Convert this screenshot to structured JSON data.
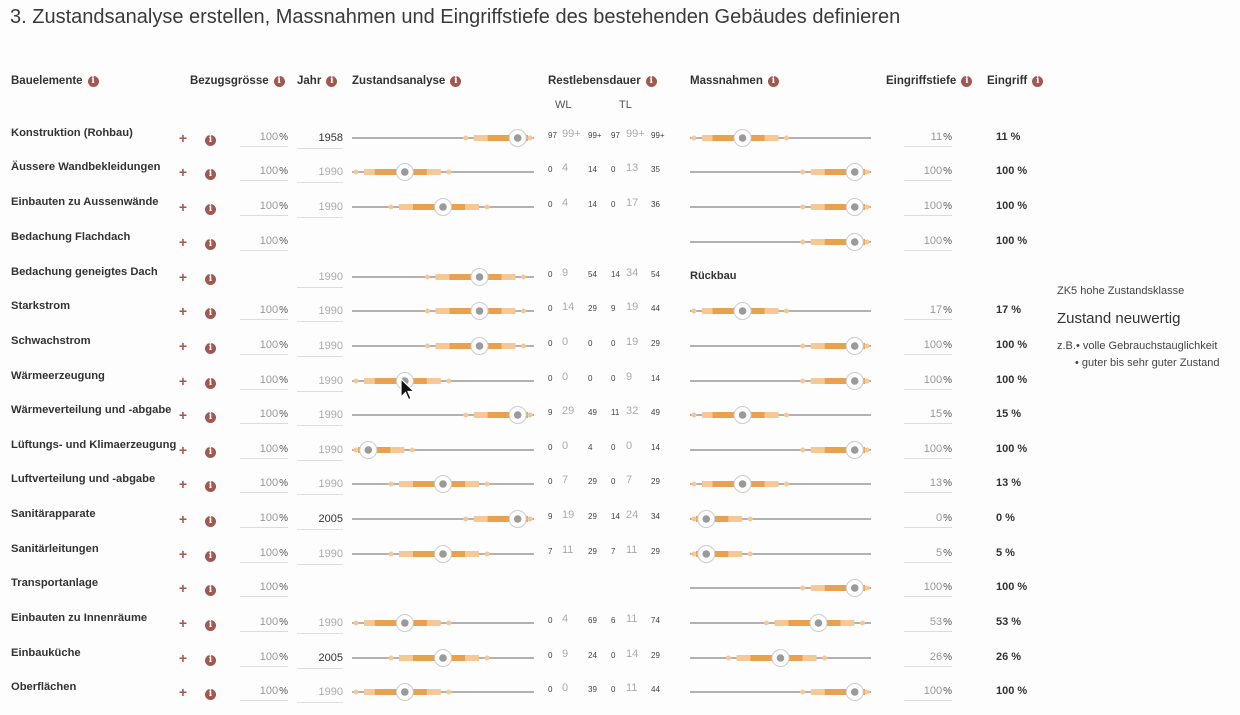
{
  "title": "3. Zustandsanalyse erstellen, Massnahmen und Eingriffstiefe des bestehenden Gebäudes definieren",
  "headers": {
    "bauelemente": "Bauelemente",
    "bezugsgroesse": "Bezugsgrösse",
    "jahr": "Jahr",
    "zustandsanalyse": "Zustandsanalyse",
    "restlebensdauer": "Restlebensdauer",
    "wl": "WL",
    "tl": "TL",
    "massnahmen": "Massnahmen",
    "eingriffstiefe": "Eingriffstiefe",
    "eingriff": "Eingriff"
  },
  "icons": {
    "info": "info-icon",
    "plus": "plus-icon",
    "cursor": "mouse-cursor-icon"
  },
  "colors": {
    "accent": "#a0584f",
    "light": "#f5c896",
    "mid": "#e8a14e",
    "dark": "#c0645a",
    "track": "#999999",
    "knob": "#9a9a9a"
  },
  "percent_sign": "%",
  "side_panel": {
    "class": "ZK5 hohe Zustandsklasse",
    "state": "Zustand neuwertig",
    "example_prefix": "z.B.",
    "bullet1": "• volle Gebrauchstauglichkeit",
    "bullet2": "• guter bis sehr guter Zustand"
  },
  "rows": [
    {
      "name": "Konstruktion (Rohbau)",
      "bezug": "100",
      "year": "1958",
      "year_set": true,
      "z": 0.95,
      "wl": [
        "97",
        "99+",
        "99+"
      ],
      "tl": [
        "97",
        "99+",
        "99+"
      ],
      "m": 0.27,
      "tiefe": "11",
      "ein": "11 %"
    },
    {
      "name": "Äussere Wandbekleidungen",
      "bezug": "100",
      "year": "1990",
      "year_set": false,
      "z": 0.27,
      "wl": [
        "0",
        "4",
        "14"
      ],
      "tl": [
        "0",
        "13",
        "35"
      ],
      "m": 0.95,
      "tiefe": "100",
      "ein": "100 %"
    },
    {
      "name": "Einbauten zu Aussenwände",
      "bezug": "100",
      "year": "1990",
      "year_set": false,
      "z": 0.5,
      "wl": [
        "0",
        "4",
        "14"
      ],
      "tl": [
        "0",
        "17",
        "36"
      ],
      "m": 0.95,
      "tiefe": "100",
      "ein": "100 %"
    },
    {
      "name": "Bedachung Flachdach",
      "bezug": "100",
      "year": null,
      "year_set": false,
      "z": null,
      "wl": null,
      "tl": null,
      "m": 0.95,
      "tiefe": "100",
      "ein": "100 %"
    },
    {
      "name": "Bedachung geneigtes Dach",
      "bezug": null,
      "year": "1990",
      "year_set": false,
      "z": 0.72,
      "wl": [
        "0",
        "9",
        "54"
      ],
      "tl": [
        "14",
        "34",
        "54"
      ],
      "m": null,
      "rueck": "Rückbau",
      "tiefe": null,
      "ein": null
    },
    {
      "name": "Starkstrom",
      "bezug": "100",
      "year": "1990",
      "year_set": false,
      "z": 0.72,
      "wl": [
        "0",
        "14",
        "29"
      ],
      "tl": [
        "9",
        "19",
        "44"
      ],
      "m": 0.27,
      "tiefe": "17",
      "ein": "17 %"
    },
    {
      "name": "Schwachstrom",
      "bezug": "100",
      "year": "1990",
      "year_set": false,
      "z": 0.72,
      "wl": [
        "0",
        "0",
        "0"
      ],
      "tl": [
        "0",
        "19",
        "29"
      ],
      "m": 0.95,
      "tiefe": "100",
      "ein": "100 %"
    },
    {
      "name": "Wärmeerzeugung",
      "bezug": "100",
      "year": "1990",
      "year_set": false,
      "z": 0.27,
      "wl": [
        "0",
        "0",
        "0"
      ],
      "tl": [
        "0",
        "9",
        "14"
      ],
      "m": 0.95,
      "tiefe": "100",
      "ein": "100 %"
    },
    {
      "name": "Wärmeverteilung und -abgabe",
      "bezug": "100",
      "year": "1990",
      "year_set": false,
      "z": 0.95,
      "wl": [
        "9",
        "29",
        "49"
      ],
      "tl": [
        "11",
        "32",
        "49"
      ],
      "m": 0.27,
      "tiefe": "15",
      "ein": "15 %"
    },
    {
      "name": "Lüftungs- und Klimaerzeugung",
      "bezug": "100",
      "year": "1990",
      "year_set": false,
      "z": 0.05,
      "wl": [
        "0",
        "0",
        "4"
      ],
      "tl": [
        "0",
        "0",
        "14"
      ],
      "m": 0.95,
      "tiefe": "100",
      "ein": "100 %"
    },
    {
      "name": "Luftverteilung und -abgabe",
      "bezug": "100",
      "year": "1990",
      "year_set": false,
      "z": 0.5,
      "wl": [
        "0",
        "7",
        "29"
      ],
      "tl": [
        "0",
        "7",
        "29"
      ],
      "m": 0.27,
      "tiefe": "13",
      "ein": "13 %"
    },
    {
      "name": "Sanitärapparate",
      "bezug": "100",
      "year": "2005",
      "year_set": true,
      "z": 0.95,
      "wl": [
        "9",
        "19",
        "29"
      ],
      "tl": [
        "14",
        "24",
        "34"
      ],
      "m": 0.05,
      "tiefe": "0",
      "ein": "0 %"
    },
    {
      "name": "Sanitärleitungen",
      "bezug": "100",
      "year": "1990",
      "year_set": false,
      "z": 0.5,
      "wl": [
        "7",
        "11",
        "29"
      ],
      "tl": [
        "7",
        "11",
        "29"
      ],
      "m": 0.05,
      "tiefe": "5",
      "ein": "5 %"
    },
    {
      "name": "Transportanlage",
      "bezug": "100",
      "year": null,
      "year_set": false,
      "z": null,
      "wl": null,
      "tl": null,
      "m": 0.95,
      "tiefe": "100",
      "ein": "100 %"
    },
    {
      "name": "Einbauten zu Innenräume",
      "bezug": "100",
      "year": "1990",
      "year_set": false,
      "z": 0.27,
      "wl": [
        "0",
        "4",
        "69"
      ],
      "tl": [
        "6",
        "11",
        "74"
      ],
      "m": 0.73,
      "tiefe": "53",
      "ein": "53 %"
    },
    {
      "name": "Einbauküche",
      "bezug": "100",
      "year": "2005",
      "year_set": true,
      "z": 0.5,
      "wl": [
        "0",
        "9",
        "24"
      ],
      "tl": [
        "0",
        "14",
        "29"
      ],
      "m": 0.5,
      "tiefe": "26",
      "ein": "26 %"
    },
    {
      "name": "Oberflächen",
      "bezug": "100",
      "year": "1990",
      "year_set": false,
      "z": 0.27,
      "wl": [
        "0",
        "0",
        "39"
      ],
      "tl": [
        "0",
        "11",
        "44"
      ],
      "m": 0.95,
      "tiefe": "100",
      "ein": "100 %"
    }
  ]
}
